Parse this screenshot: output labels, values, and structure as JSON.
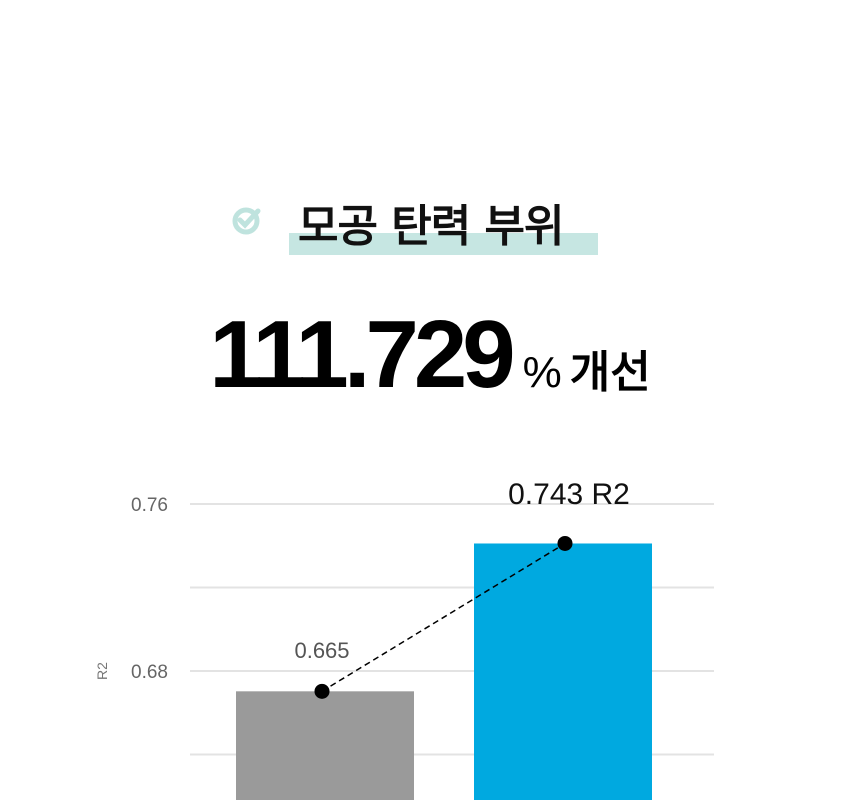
{
  "header": {
    "title": "모공 탄력 부위",
    "accent_color": "#c6e6e2",
    "icon": "check-circle-icon"
  },
  "headline": {
    "value": "111.729",
    "unit": "%",
    "text": "개선"
  },
  "chart_data": {
    "type": "bar",
    "categories": [
      "",
      ""
    ],
    "values": [
      0.665,
      0.743
    ],
    "colors": [
      "#9a9a9a",
      "#00a9e0"
    ],
    "data_labels": [
      "0.665",
      "0.743 R2"
    ],
    "ylabel": "R2",
    "yticks": [
      0.76,
      0.68
    ],
    "gridlines": [
      0.76,
      0.72,
      0.68,
      0.64
    ],
    "ylim": [
      0.56,
      0.78
    ],
    "grid": true,
    "overlay": "dashed line connecting bar tops with dot markers"
  }
}
